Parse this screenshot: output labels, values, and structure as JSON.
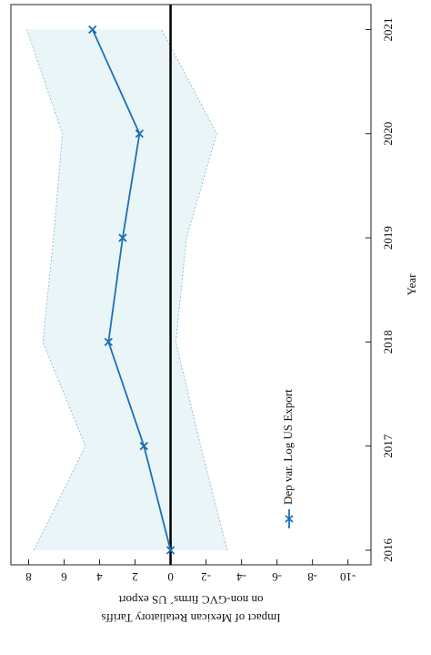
{
  "chart_data": {
    "type": "line",
    "x": [
      2016,
      2017,
      2018,
      2019,
      2020,
      2021
    ],
    "series": [
      {
        "name": "Dep var. Log US Export",
        "color": "#1f6fb5",
        "values": [
          0,
          1.5,
          3.5,
          2.7,
          1.75,
          4.4
        ],
        "ci_upper": [
          7.7,
          4.8,
          7.2,
          6.6,
          6.1,
          8.1
        ],
        "ci_lower": [
          -3.2,
          -1.7,
          -0.3,
          -0.9,
          -2.6,
          0.5
        ]
      }
    ],
    "band_color": "#e9f5f7",
    "xlim": [
      2015.86,
      2021.24
    ],
    "xticks": [
      2016,
      2017,
      2018,
      2019,
      2020,
      2021
    ],
    "ylim": [
      -11.3,
      9
    ],
    "yticks": [
      -10,
      -8,
      -6,
      -4,
      -2,
      0,
      2,
      4,
      6,
      8
    ],
    "xlabel": "Year",
    "ylabel": [
      "Impact of Mexican Retaliatory Tariffs",
      "on non-GVC firms´ US export"
    ],
    "zero_line": true
  }
}
